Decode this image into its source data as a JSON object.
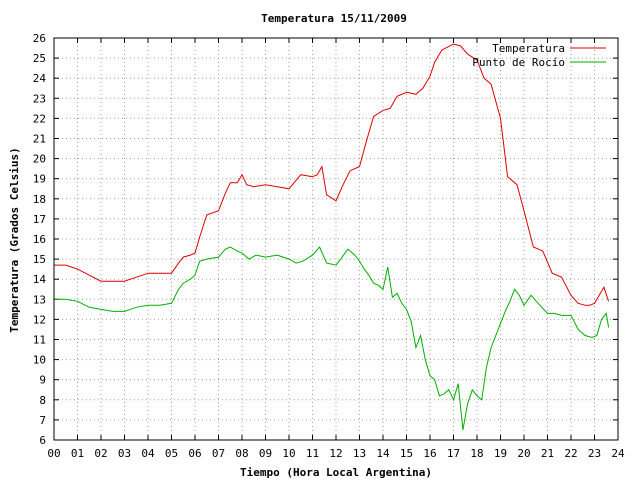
{
  "chart_data": {
    "type": "line",
    "title": "Temperatura 15/11/2009",
    "xlabel": "Tiempo (Hora Local Argentina)",
    "ylabel": "Temperatura (Grados Celsius)",
    "xlim": [
      0,
      24
    ],
    "ylim": [
      6,
      26
    ],
    "x_tick_labels": [
      "00",
      "01",
      "02",
      "03",
      "04",
      "05",
      "06",
      "07",
      "08",
      "09",
      "10",
      "11",
      "12",
      "13",
      "14",
      "15",
      "16",
      "17",
      "18",
      "19",
      "20",
      "21",
      "22",
      "23",
      "24"
    ],
    "y_tick_labels": [
      "6",
      "7",
      "8",
      "9",
      "10",
      "11",
      "12",
      "13",
      "14",
      "15",
      "16",
      "17",
      "18",
      "19",
      "20",
      "21",
      "22",
      "23",
      "24",
      "25",
      "26"
    ],
    "grid": true,
    "legend_position": "top-right",
    "series": [
      {
        "name": "Temperatura",
        "color": "#e00000",
        "x": [
          0,
          0.5,
          1,
          1.5,
          2,
          2.5,
          3,
          3.5,
          4,
          4.5,
          5,
          5.3,
          5.5,
          5.8,
          6,
          6.2,
          6.5,
          7,
          7.3,
          7.5,
          7.8,
          8,
          8.2,
          8.5,
          9,
          9.5,
          10,
          10.5,
          11,
          11.2,
          11.4,
          11.6,
          12,
          12.3,
          12.6,
          13,
          13.3,
          13.6,
          14,
          14.3,
          14.6,
          15,
          15.4,
          15.7,
          16,
          16.2,
          16.5,
          17,
          17.3,
          17.6,
          18,
          18.3,
          18.6,
          19,
          19.3,
          19.7,
          20,
          20.4,
          20.8,
          21.2,
          21.6,
          22,
          22.3,
          22.6,
          22.8,
          23,
          23.2,
          23.4,
          23.6
        ],
        "values": [
          14.7,
          14.7,
          14.5,
          14.2,
          13.9,
          13.9,
          13.9,
          14.1,
          14.3,
          14.3,
          14.3,
          14.8,
          15.1,
          15.2,
          15.3,
          16.1,
          17.2,
          17.4,
          18.3,
          18.8,
          18.8,
          19.2,
          18.7,
          18.6,
          18.7,
          18.6,
          18.5,
          19.2,
          19.1,
          19.2,
          19.6,
          18.2,
          17.9,
          18.7,
          19.4,
          19.6,
          20.9,
          22.1,
          22.4,
          22.5,
          23.1,
          23.3,
          23.2,
          23.5,
          24.1,
          24.8,
          25.4,
          25.7,
          25.6,
          25.2,
          24.9,
          24.0,
          23.7,
          22.0,
          19.1,
          18.7,
          17.4,
          15.6,
          15.4,
          14.3,
          14.1,
          13.2,
          12.8,
          12.7,
          12.7,
          12.8,
          13.2,
          13.6,
          12.9
        ]
      },
      {
        "name": "Punto de Rocío",
        "color": "#00b000",
        "x": [
          0,
          0.5,
          1,
          1.5,
          2,
          2.5,
          3,
          3.5,
          4,
          4.5,
          5,
          5.3,
          5.5,
          5.8,
          6,
          6.2,
          6.5,
          7,
          7.3,
          7.5,
          7.8,
          8,
          8.3,
          8.6,
          9,
          9.5,
          10,
          10.3,
          10.6,
          11,
          11.3,
          11.6,
          12,
          12.2,
          12.5,
          12.8,
          13,
          13.2,
          13.4,
          13.6,
          13.8,
          14,
          14.2,
          14.4,
          14.6,
          14.8,
          15,
          15.2,
          15.4,
          15.6,
          15.8,
          16,
          16.2,
          16.4,
          16.6,
          16.8,
          17,
          17.2,
          17.4,
          17.6,
          17.8,
          18,
          18.2,
          18.4,
          18.6,
          18.8,
          19,
          19.2,
          19.4,
          19.6,
          19.8,
          20,
          20.3,
          20.6,
          21,
          21.3,
          21.6,
          22,
          22.3,
          22.6,
          22.9,
          23.1,
          23.3,
          23.5,
          23.6
        ],
        "values": [
          13.0,
          13.0,
          12.9,
          12.6,
          12.5,
          12.4,
          12.4,
          12.6,
          12.7,
          12.7,
          12.8,
          13.5,
          13.8,
          14.0,
          14.2,
          14.9,
          15.0,
          15.1,
          15.5,
          15.6,
          15.4,
          15.3,
          15.0,
          15.2,
          15.1,
          15.2,
          15.0,
          14.8,
          14.9,
          15.2,
          15.6,
          14.8,
          14.7,
          15.0,
          15.5,
          15.2,
          14.9,
          14.5,
          14.2,
          13.8,
          13.7,
          13.5,
          14.6,
          13.1,
          13.3,
          12.8,
          12.5,
          11.9,
          10.6,
          11.2,
          10.0,
          9.2,
          9.0,
          8.2,
          8.3,
          8.5,
          8.0,
          8.8,
          6.5,
          7.8,
          8.5,
          8.2,
          8.0,
          9.6,
          10.6,
          11.2,
          11.8,
          12.4,
          12.9,
          13.5,
          13.2,
          12.7,
          13.2,
          12.8,
          12.3,
          12.3,
          12.2,
          12.2,
          11.5,
          11.2,
          11.1,
          11.2,
          12.0,
          12.3,
          11.6
        ]
      }
    ]
  }
}
